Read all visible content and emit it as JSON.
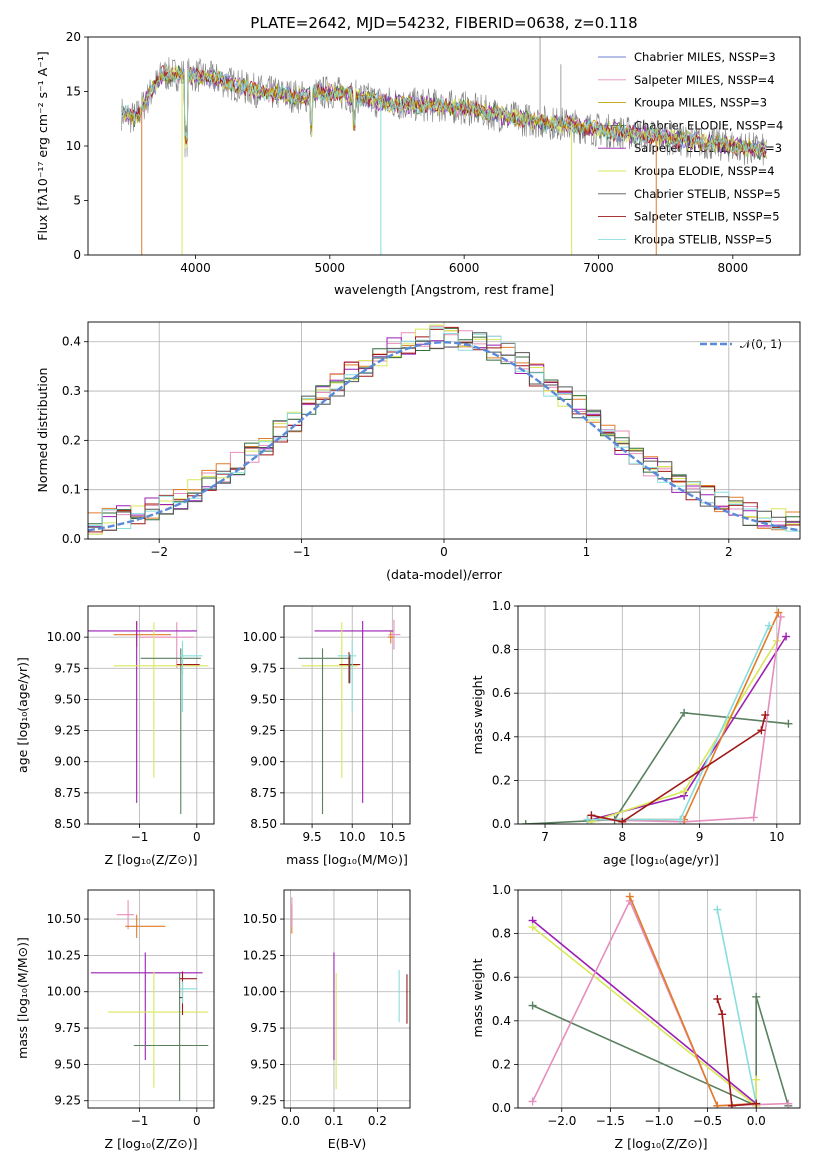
{
  "chart_data": [
    {
      "type": "line",
      "title": "PLATE=2642, MJD=54232, FIBERID=0638, z=0.118",
      "xlabel": "wavelength [Angstrom, rest frame]",
      "ylabel": "Flux [fλ10⁻¹⁷ erg cm⁻² s⁻¹ A⁻¹]",
      "xlim": [
        3200,
        8500
      ],
      "ylim": [
        0,
        20
      ],
      "xticks": [
        "4000",
        "5000",
        "6000",
        "7000",
        "8000"
      ],
      "yticks": [
        "0",
        "5",
        "10",
        "15",
        "20"
      ],
      "legend_position": "upper-right",
      "series": [
        {
          "name": "Chabrier MILES, NSSP=3",
          "color": "#6b7fd1"
        },
        {
          "name": "Salpeter MILES, NSSP=4",
          "color": "#e58fbc"
        },
        {
          "name": "Kroupa MILES, NSSP=3",
          "color": "#c0a000"
        },
        {
          "name": "Chabrier ELODIE, NSSP=4",
          "color": "#2f6e3b"
        },
        {
          "name": "Salpeter ELODIE, NSSP=3",
          "color": "#9b1fb5"
        },
        {
          "name": "Kroupa ELODIE, NSSP=4",
          "color": "#d8e85a"
        },
        {
          "name": "Chabrier STELIB, NSSP=5",
          "color": "#555555"
        },
        {
          "name": "Salpeter STELIB, NSSP=5",
          "color": "#a01818"
        },
        {
          "name": "Kroupa STELIB, NSSP=5",
          "color": "#88dddd"
        }
      ],
      "continuum": {
        "x": [
          3450,
          3550,
          3650,
          3750,
          3850,
          4000,
          4200,
          4400,
          4600,
          4800,
          5000,
          5200,
          5400,
          5600,
          5800,
          6000,
          6200,
          6400,
          6600,
          6800,
          7000,
          7200,
          7400,
          7600,
          7800,
          8000,
          8200
        ],
        "y": [
          13.0,
          12.5,
          14.5,
          16.5,
          16.6,
          16.5,
          16.0,
          15.2,
          14.8,
          14.5,
          15.0,
          14.5,
          14.0,
          13.8,
          13.7,
          13.5,
          13.0,
          12.5,
          12.2,
          11.9,
          11.5,
          11.2,
          10.9,
          10.6,
          10.3,
          10.0,
          9.6
        ]
      }
    },
    {
      "type": "line",
      "xlabel": "(data-model)/error",
      "ylabel": "Normed distribution",
      "xlim": [
        -2.5,
        2.5
      ],
      "ylim": [
        0,
        0.44
      ],
      "xticks": [
        "−2",
        "−1",
        "0",
        "1",
        "2"
      ],
      "yticks": [
        "0.0",
        "0.1",
        "0.2",
        "0.3",
        "0.4"
      ],
      "legend_position": "upper-right",
      "legend": "𝒩(0, 1)",
      "reference_color": "#5b8ad8",
      "bin_width": 0.1
    },
    {
      "type": "scatter",
      "xlabel": "Z [log₁₀(Z/Z⊙)]",
      "ylabel": "age  [log₁₀(age/yr)]",
      "xlim": [
        -1.9,
        0.3
      ],
      "ylim": [
        8.5,
        10.25
      ],
      "xticks": [
        "−1",
        "0"
      ],
      "yticks": [
        "8.50",
        "8.75",
        "9.00",
        "9.25",
        "9.50",
        "9.75",
        "10.00"
      ],
      "points": [
        {
          "x": -0.35,
          "y": 10.0,
          "xerr": [
            0.65,
            0.3
          ],
          "yerr": [
            0.25,
            0.12
          ],
          "color": "#e58fbc"
        },
        {
          "x": -1.05,
          "y": 10.02,
          "xerr": [
            0.4,
            0.6
          ],
          "yerr": [
            0.1,
            0.1
          ],
          "color": "#e07c2a"
        },
        {
          "x": -1.05,
          "y": 10.05,
          "xerr": [
            0.9,
            1.05
          ],
          "yerr": [
            1.38,
            0.08
          ],
          "color": "#9b1fb5"
        },
        {
          "x": -0.75,
          "y": 9.77,
          "xerr": [
            0.7,
            0.95
          ],
          "yerr": [
            0.9,
            0.35
          ],
          "color": "#d8e85a"
        },
        {
          "x": -0.28,
          "y": 9.83,
          "xerr": [
            0.7,
            0.35
          ],
          "yerr": [
            1.25,
            0.08
          ],
          "color": "#5a8060"
        },
        {
          "x": -0.25,
          "y": 9.78,
          "xerr": [
            0.1,
            0.3
          ],
          "yerr": [
            0.08,
            0.08
          ],
          "color": "#a01818"
        },
        {
          "x": -0.25,
          "y": 9.85,
          "xerr": [
            0.05,
            0.35
          ],
          "yerr": [
            0.45,
            0.12
          ],
          "color": "#88dddd"
        }
      ]
    },
    {
      "type": "scatter",
      "xlabel": "mass [log₁₀(M/M⊙)]",
      "xlim": [
        9.15,
        10.72
      ],
      "ylim": [
        8.5,
        10.25
      ],
      "xticks": [
        "9.5",
        "10.0",
        "10.5"
      ],
      "yticks": [
        "8.50",
        "8.75",
        "9.00",
        "9.25",
        "9.50",
        "9.75",
        "10.00"
      ],
      "points": [
        {
          "x": 10.52,
          "y": 10.02,
          "xerr": [
            0.07,
            0.08
          ],
          "yerr": [
            0.12,
            0.12
          ],
          "color": "#e58fbc"
        },
        {
          "x": 10.48,
          "y": 10.0,
          "xerr": [
            0.04,
            0.04
          ],
          "yerr": [
            0.05,
            0.05
          ],
          "color": "#e07c2a"
        },
        {
          "x": 10.13,
          "y": 10.05,
          "xerr": [
            0.6,
            0.38
          ],
          "yerr": [
            1.38,
            0.08
          ],
          "color": "#9b1fb5"
        },
        {
          "x": 9.87,
          "y": 9.77,
          "xerr": [
            0.5,
            0.2
          ],
          "yerr": [
            0.9,
            0.35
          ],
          "color": "#d8e85a"
        },
        {
          "x": 9.63,
          "y": 9.83,
          "xerr": [
            0.3,
            0.35
          ],
          "yerr": [
            1.25,
            0.08
          ],
          "color": "#5a8060"
        },
        {
          "x": 9.96,
          "y": 9.78,
          "xerr": [
            0.12,
            0.14
          ],
          "yerr": [
            0.15,
            0.1
          ],
          "color": "#a01818"
        },
        {
          "x": 10.0,
          "y": 9.85,
          "xerr": [
            0.18,
            0.05
          ],
          "yerr": [
            0.45,
            0.12
          ],
          "color": "#88dddd"
        },
        {
          "x": 9.97,
          "y": 9.78,
          "xerr": [
            0.02,
            0.02
          ],
          "yerr": [
            0.15,
            0.08
          ],
          "color": "#555555"
        }
      ]
    },
    {
      "type": "line",
      "xlabel": "age  [log₁₀(age/yr)]",
      "ylabel": "mass weight",
      "xlim": [
        6.65,
        10.3
      ],
      "ylim": [
        0,
        1.0
      ],
      "xticks": [
        "7",
        "8",
        "9",
        "10"
      ],
      "yticks": [
        "0.0",
        "0.2",
        "0.4",
        "0.6",
        "0.8",
        "1.0"
      ],
      "series": [
        {
          "color": "#5a8060",
          "x": [
            6.75,
            7.9,
            8.8,
            10.15
          ],
          "y": [
            0.0,
            0.02,
            0.51,
            0.46
          ]
        },
        {
          "color": "#9b1fb5",
          "x": [
            7.6,
            8.8,
            10.12
          ],
          "y": [
            0.02,
            0.13,
            0.86
          ]
        },
        {
          "color": "#d8e85a",
          "x": [
            7.6,
            8.8,
            10.0
          ],
          "y": [
            0.01,
            0.15,
            0.84
          ]
        },
        {
          "color": "#e58fbc",
          "x": [
            7.55,
            8.8,
            9.7,
            10.05
          ],
          "y": [
            0.02,
            0.01,
            0.03,
            0.95
          ]
        },
        {
          "color": "#e07c2a",
          "x": [
            7.55,
            8.8,
            10.02
          ],
          "y": [
            0.02,
            0.02,
            0.97
          ]
        },
        {
          "color": "#88dddd",
          "x": [
            7.55,
            8.75,
            9.9
          ],
          "y": [
            0.02,
            0.02,
            0.91
          ]
        },
        {
          "color": "#a01818",
          "x": [
            7.6,
            8.0,
            9.8,
            9.85
          ],
          "y": [
            0.04,
            0.01,
            0.43,
            0.5
          ]
        }
      ]
    },
    {
      "type": "scatter",
      "xlabel": "Z [log₁₀(Z/Z⊙)]",
      "ylabel": "mass [log₁₀(M/M⊙)]",
      "xlim": [
        -1.9,
        0.3
      ],
      "ylim": [
        9.2,
        10.7
      ],
      "xticks": [
        "−1",
        "0"
      ],
      "yticks": [
        "9.25",
        "9.50",
        "9.75",
        "10.00",
        "10.25",
        "10.50"
      ],
      "points": [
        {
          "x": -1.2,
          "y": 10.53,
          "xerr": [
            0.2,
            0.1
          ],
          "yerr": [
            0.1,
            0.1
          ],
          "color": "#e58fbc"
        },
        {
          "x": -1.05,
          "y": 10.45,
          "xerr": [
            0.2,
            0.5
          ],
          "yerr": [
            0.08,
            0.08
          ],
          "color": "#e07c2a"
        },
        {
          "x": -0.9,
          "y": 10.13,
          "xerr": [
            0.95,
            1.0
          ],
          "yerr": [
            0.6,
            0.14
          ],
          "color": "#9b1fb5"
        },
        {
          "x": -0.75,
          "y": 9.86,
          "xerr": [
            0.8,
            0.95
          ],
          "yerr": [
            0.52,
            0.28
          ],
          "color": "#d8e85a"
        },
        {
          "x": -0.3,
          "y": 9.63,
          "xerr": [
            0.8,
            0.5
          ],
          "yerr": [
            0.38,
            0.5
          ],
          "color": "#5a8060"
        },
        {
          "x": -0.25,
          "y": 10.09,
          "xerr": [
            0.05,
            0.25
          ],
          "yerr": [
            0.25,
            0.05
          ],
          "color": "#a01818"
        },
        {
          "x": -0.25,
          "y": 10.02,
          "xerr": [
            0.05,
            0.25
          ],
          "yerr": [
            0.1,
            0.05
          ],
          "color": "#88dddd"
        },
        {
          "x": -0.25,
          "y": 9.96,
          "xerr": [
            0.06,
            0.0
          ],
          "yerr": [
            0.0,
            0.0
          ],
          "color": "#555555"
        }
      ]
    },
    {
      "type": "scatter",
      "xlabel": "E(B-V)",
      "xlim": [
        -0.015,
        0.275
      ],
      "ylim": [
        9.2,
        10.7
      ],
      "xticks": [
        "0.0",
        "0.1",
        "0.2"
      ],
      "yticks": [
        "9.25",
        "9.50",
        "9.75",
        "10.00",
        "10.25",
        "10.50"
      ],
      "points": [
        {
          "x": 0.003,
          "y": 10.5,
          "yerr": [
            0.1,
            0.1
          ],
          "color": "#e07c2a"
        },
        {
          "x": 0.003,
          "y": 10.55,
          "yerr": [
            0.1,
            0.1
          ],
          "color": "#e58fbc"
        },
        {
          "x": 0.1,
          "y": 9.9,
          "yerr": [
            0.37,
            0.37
          ],
          "color": "#9b1fb5"
        },
        {
          "x": 0.105,
          "y": 9.73,
          "yerr": [
            0.4,
            0.4
          ],
          "color": "#d8e85a"
        },
        {
          "x": 0.25,
          "y": 9.97,
          "yerr": [
            0.18,
            0.18
          ],
          "color": "#88dddd"
        },
        {
          "x": 0.268,
          "y": 9.95,
          "yerr": [
            0.17,
            0.17
          ],
          "color": "#a01818"
        }
      ]
    },
    {
      "type": "line",
      "xlabel": "Z [log₁₀(Z/Z⊙)]",
      "ylabel": "mass weight",
      "xlim": [
        -2.45,
        0.45
      ],
      "ylim": [
        0,
        1.0
      ],
      "xticks": [
        "−2.0",
        "−1.5",
        "−1.0",
        "−0.5",
        "0.0"
      ],
      "yticks": [
        "0.0",
        "0.2",
        "0.4",
        "0.6",
        "0.8",
        "1.0"
      ],
      "series": [
        {
          "color": "#5a8060",
          "x": [
            -2.3,
            0.0,
            0.0,
            0.33
          ],
          "y": [
            0.47,
            0.01,
            0.51,
            0.01
          ]
        },
        {
          "color": "#9b1fb5",
          "x": [
            -2.3,
            0.0
          ],
          "y": [
            0.86,
            0.02
          ]
        },
        {
          "color": "#d8e85a",
          "x": [
            -2.3,
            0.0,
            0.0
          ],
          "y": [
            0.83,
            0.01,
            0.13
          ]
        },
        {
          "color": "#e58fbc",
          "x": [
            -2.3,
            -1.3,
            -0.4,
            0.33
          ],
          "y": [
            0.03,
            0.95,
            0.01,
            0.02
          ]
        },
        {
          "color": "#e07c2a",
          "x": [
            -1.3,
            -0.4,
            0.0
          ],
          "y": [
            0.97,
            0.01,
            0.02
          ]
        },
        {
          "color": "#88dddd",
          "x": [
            -0.4,
            0.0
          ],
          "y": [
            0.91,
            0.02
          ]
        },
        {
          "color": "#a01818",
          "x": [
            -0.4,
            -0.35,
            -0.25,
            0.0
          ],
          "y": [
            0.5,
            0.43,
            0.01,
            0.02
          ]
        }
      ]
    }
  ]
}
